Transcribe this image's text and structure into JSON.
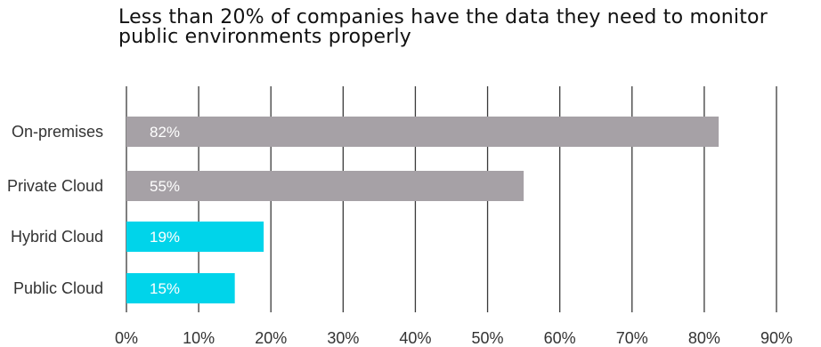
{
  "chart_data": {
    "type": "bar",
    "orientation": "horizontal",
    "title": "Less than 20% of companies have the data they need to monitor public environments properly",
    "categories": [
      "On-premises",
      "Private Cloud",
      "Hybrid Cloud",
      "Public Cloud"
    ],
    "values": [
      82,
      55,
      19,
      15
    ],
    "value_labels": [
      "82%",
      "55%",
      "19%",
      "15%"
    ],
    "bar_colors": [
      "#a6a1a6",
      "#a6a1a6",
      "#00d4ea",
      "#00d4ea"
    ],
    "xlim": [
      0,
      90
    ],
    "x_ticks": [
      0,
      10,
      20,
      30,
      40,
      50,
      60,
      70,
      80,
      90
    ],
    "x_tick_labels": [
      "0%",
      "10%",
      "20%",
      "30%",
      "40%",
      "50%",
      "60%",
      "70%",
      "80%",
      "90%"
    ],
    "xlabel": "",
    "ylabel": "",
    "grid": "vertical",
    "legend": "none"
  }
}
